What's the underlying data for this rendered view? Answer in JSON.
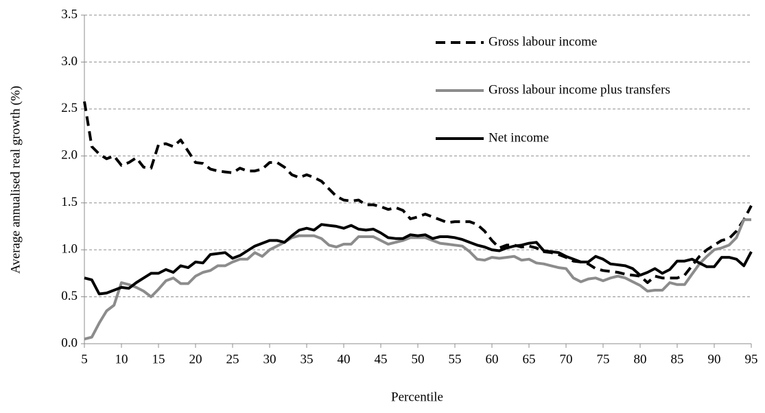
{
  "chart_data": {
    "type": "line",
    "y_label": "Average annualised real growth (%)",
    "x_label": "Percentile",
    "x": [
      5,
      6,
      7,
      8,
      9,
      10,
      11,
      12,
      13,
      14,
      15,
      16,
      17,
      18,
      19,
      20,
      21,
      22,
      23,
      24,
      25,
      26,
      27,
      28,
      29,
      30,
      31,
      32,
      33,
      34,
      35,
      36,
      37,
      38,
      39,
      40,
      41,
      42,
      43,
      44,
      45,
      46,
      47,
      48,
      49,
      50,
      51,
      52,
      53,
      54,
      55,
      56,
      57,
      58,
      59,
      60,
      61,
      62,
      63,
      64,
      65,
      66,
      67,
      68,
      69,
      70,
      71,
      72,
      73,
      74,
      75,
      76,
      77,
      78,
      79,
      80,
      81,
      82,
      83,
      84,
      85,
      86,
      87,
      88,
      89,
      90,
      91,
      92,
      93,
      94,
      95
    ],
    "series": [
      {
        "name": "Gross labour income",
        "color": "#000000",
        "style": "dashed",
        "values": [
          2.58,
          2.1,
          2.02,
          1.97,
          2.0,
          1.9,
          1.93,
          1.98,
          1.88,
          1.87,
          2.12,
          2.13,
          2.1,
          2.17,
          2.05,
          1.93,
          1.92,
          1.86,
          1.84,
          1.83,
          1.82,
          1.87,
          1.84,
          1.84,
          1.86,
          1.93,
          1.93,
          1.88,
          1.8,
          1.77,
          1.8,
          1.77,
          1.73,
          1.65,
          1.57,
          1.53,
          1.52,
          1.53,
          1.48,
          1.48,
          1.46,
          1.43,
          1.45,
          1.42,
          1.33,
          1.35,
          1.38,
          1.35,
          1.32,
          1.29,
          1.3,
          1.3,
          1.3,
          1.27,
          1.2,
          1.1,
          1.02,
          1.05,
          1.05,
          1.03,
          1.04,
          1.02,
          0.98,
          0.97,
          0.95,
          0.92,
          0.88,
          0.87,
          0.85,
          0.8,
          0.78,
          0.77,
          0.76,
          0.74,
          0.73,
          0.72,
          0.65,
          0.72,
          0.7,
          0.7,
          0.7,
          0.73,
          0.83,
          0.93,
          1.0,
          1.05,
          1.1,
          1.12,
          1.2,
          1.32,
          1.47
        ]
      },
      {
        "name": "Gross labour income plus transfers",
        "color": "#8c8c8c",
        "style": "solid",
        "values": [
          0.05,
          0.07,
          0.22,
          0.35,
          0.41,
          0.65,
          0.63,
          0.6,
          0.56,
          0.5,
          0.58,
          0.67,
          0.7,
          0.64,
          0.64,
          0.72,
          0.76,
          0.78,
          0.83,
          0.83,
          0.87,
          0.9,
          0.9,
          0.97,
          0.93,
          1.0,
          1.04,
          1.08,
          1.13,
          1.15,
          1.15,
          1.15,
          1.12,
          1.05,
          1.03,
          1.06,
          1.06,
          1.14,
          1.14,
          1.14,
          1.1,
          1.06,
          1.08,
          1.1,
          1.13,
          1.13,
          1.13,
          1.1,
          1.07,
          1.06,
          1.05,
          1.04,
          0.98,
          0.9,
          0.89,
          0.92,
          0.91,
          0.92,
          0.93,
          0.89,
          0.9,
          0.86,
          0.85,
          0.83,
          0.81,
          0.8,
          0.7,
          0.66,
          0.69,
          0.7,
          0.67,
          0.7,
          0.72,
          0.7,
          0.66,
          0.62,
          0.56,
          0.57,
          0.57,
          0.65,
          0.63,
          0.63,
          0.74,
          0.85,
          0.93,
          1.0,
          1.02,
          1.05,
          1.13,
          1.32,
          1.32
        ]
      },
      {
        "name": "Net income",
        "color": "#000000",
        "style": "solid",
        "values": [
          0.7,
          0.68,
          0.53,
          0.54,
          0.57,
          0.6,
          0.59,
          0.65,
          0.7,
          0.75,
          0.75,
          0.79,
          0.76,
          0.83,
          0.81,
          0.87,
          0.86,
          0.95,
          0.96,
          0.97,
          0.91,
          0.94,
          0.99,
          1.04,
          1.07,
          1.1,
          1.1,
          1.08,
          1.15,
          1.21,
          1.23,
          1.21,
          1.27,
          1.26,
          1.25,
          1.23,
          1.26,
          1.22,
          1.21,
          1.22,
          1.18,
          1.13,
          1.12,
          1.12,
          1.16,
          1.15,
          1.16,
          1.12,
          1.14,
          1.14,
          1.13,
          1.11,
          1.08,
          1.05,
          1.03,
          1.0,
          0.99,
          1.02,
          1.04,
          1.05,
          1.07,
          1.08,
          0.99,
          0.98,
          0.97,
          0.93,
          0.9,
          0.87,
          0.87,
          0.93,
          0.9,
          0.85,
          0.84,
          0.83,
          0.8,
          0.73,
          0.76,
          0.8,
          0.75,
          0.79,
          0.88,
          0.88,
          0.9,
          0.86,
          0.82,
          0.82,
          0.92,
          0.92,
          0.9,
          0.83,
          0.98
        ]
      }
    ],
    "xlim": [
      5,
      95
    ],
    "xticks": [
      5,
      10,
      15,
      20,
      25,
      30,
      35,
      40,
      45,
      50,
      55,
      60,
      65,
      70,
      75,
      80,
      85,
      90,
      95
    ],
    "ylim": [
      0,
      3.5
    ],
    "yticks": [
      {
        "value": 0,
        "label": "0.0"
      },
      0.5,
      {
        "value": 1,
        "label": "1.0"
      },
      1.5,
      {
        "value": 2,
        "label": "2.0"
      },
      2.5,
      {
        "value": 3,
        "label": "3.0"
      },
      3.5
    ],
    "grid": true,
    "legend": "upper right"
  }
}
